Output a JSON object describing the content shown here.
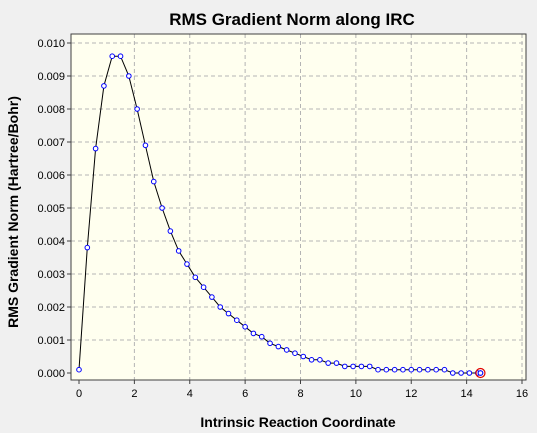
{
  "chart_data": {
    "type": "line",
    "title": "RMS Gradient Norm along IRC",
    "xlabel": "Intrinsic Reaction Coordinate",
    "ylabel": "RMS Gradient Norm (Hartree/Bohr)",
    "xlim": [
      0,
      16
    ],
    "ylim": [
      0,
      0.01
    ],
    "xticks": [
      "0",
      "2",
      "4",
      "6",
      "8",
      "10",
      "12",
      "14",
      "16"
    ],
    "yticks": [
      "0.000",
      "0.001",
      "0.002",
      "0.003",
      "0.004",
      "0.005",
      "0.006",
      "0.007",
      "0.008",
      "0.009",
      "0.010"
    ],
    "grid": true,
    "plot_background": "#ffffef",
    "line_color": "#000000",
    "marker_color": "#0000ff",
    "highlight_color": "#e00000",
    "highlighted_point_index": 50,
    "series": [
      {
        "x": [
          0.0,
          0.3,
          0.6,
          0.9,
          1.2,
          1.5,
          1.8,
          2.1,
          2.4,
          2.7,
          3.0,
          3.3,
          3.6,
          3.9,
          4.2,
          4.5,
          4.8,
          5.1,
          5.4,
          5.7,
          6.0,
          6.3,
          6.6,
          6.9,
          7.2,
          7.5,
          7.8,
          8.1,
          8.4,
          8.7,
          9.0,
          9.3,
          9.6,
          9.9,
          10.2,
          10.5,
          10.8,
          11.1,
          11.4,
          11.7,
          12.0,
          12.3,
          12.6,
          12.9,
          13.2,
          13.5,
          13.8,
          14.1,
          14.4,
          14.5,
          14.5
        ],
        "y": [
          0.0001,
          0.0038,
          0.0068,
          0.0087,
          0.0096,
          0.0096,
          0.009,
          0.008,
          0.0069,
          0.0058,
          0.005,
          0.0043,
          0.0037,
          0.0033,
          0.0029,
          0.0026,
          0.0023,
          0.002,
          0.0018,
          0.0016,
          0.0014,
          0.0012,
          0.0011,
          0.0009,
          0.0008,
          0.0007,
          0.0006,
          0.0005,
          0.0004,
          0.0004,
          0.0003,
          0.0003,
          0.0002,
          0.0002,
          0.0002,
          0.0002,
          0.0001,
          0.0001,
          0.0001,
          0.0001,
          0.0001,
          0.0001,
          0.0001,
          0.0001,
          0.0001,
          0.0,
          0.0,
          0.0,
          0.0,
          0.0,
          0.0
        ]
      }
    ]
  }
}
